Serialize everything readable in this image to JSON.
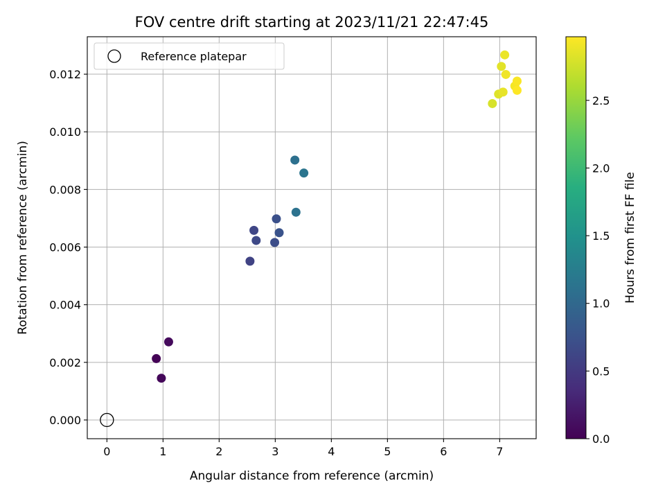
{
  "chart_data": {
    "type": "scatter",
    "title": "FOV centre drift starting at 2023/11/21 22:47:45",
    "xlabel": "Angular distance from reference (arcmin)",
    "ylabel": "Rotation from reference (arcmin)",
    "xlim": [
      -0.35,
      7.65
    ],
    "ylim": [
      -0.00065,
      0.0133
    ],
    "xticks": [
      0,
      1,
      2,
      3,
      4,
      5,
      6,
      7
    ],
    "xtick_labels": [
      "0",
      "1",
      "2",
      "3",
      "4",
      "5",
      "6",
      "7"
    ],
    "yticks": [
      0.0,
      0.002,
      0.004,
      0.006,
      0.008,
      0.01,
      0.012
    ],
    "ytick_labels": [
      "0.000",
      "0.002",
      "0.004",
      "0.006",
      "0.008",
      "0.010",
      "0.012"
    ],
    "grid": true,
    "legend": {
      "placement": "top-left",
      "entries": [
        "Reference platepar"
      ]
    },
    "reference_point": {
      "x": 0,
      "y": 0
    },
    "colorbar": {
      "label": "Hours from first FF file",
      "colormap": "viridis",
      "range": [
        0.0,
        2.97
      ],
      "ticks": [
        0.0,
        0.5,
        1.0,
        1.5,
        2.0,
        2.5
      ],
      "tick_labels": [
        "0.0",
        "0.5",
        "1.0",
        "1.5",
        "2.0",
        "2.5"
      ]
    },
    "points": [
      {
        "x": 0.88,
        "y": 0.00213,
        "hours": 0.02
      },
      {
        "x": 0.97,
        "y": 0.00145,
        "hours": 0.05
      },
      {
        "x": 1.1,
        "y": 0.00271,
        "hours": 0.08
      },
      {
        "x": 2.55,
        "y": 0.00551,
        "hours": 0.6
      },
      {
        "x": 2.62,
        "y": 0.00658,
        "hours": 0.63
      },
      {
        "x": 2.66,
        "y": 0.00623,
        "hours": 0.66
      },
      {
        "x": 2.99,
        "y": 0.00616,
        "hours": 0.7
      },
      {
        "x": 3.02,
        "y": 0.00698,
        "hours": 0.73
      },
      {
        "x": 3.07,
        "y": 0.0065,
        "hours": 0.76
      },
      {
        "x": 3.35,
        "y": 0.00902,
        "hours": 1.1
      },
      {
        "x": 3.37,
        "y": 0.00721,
        "hours": 1.13
      },
      {
        "x": 3.51,
        "y": 0.00857,
        "hours": 1.16
      },
      {
        "x": 6.87,
        "y": 0.01098,
        "hours": 2.8
      },
      {
        "x": 6.98,
        "y": 0.01131,
        "hours": 2.83
      },
      {
        "x": 7.03,
        "y": 0.01227,
        "hours": 2.85
      },
      {
        "x": 7.06,
        "y": 0.01138,
        "hours": 2.87
      },
      {
        "x": 7.09,
        "y": 0.01267,
        "hours": 2.89
      },
      {
        "x": 7.11,
        "y": 0.01199,
        "hours": 2.91
      },
      {
        "x": 7.27,
        "y": 0.01159,
        "hours": 2.93
      },
      {
        "x": 7.31,
        "y": 0.01176,
        "hours": 2.95
      },
      {
        "x": 7.31,
        "y": 0.01144,
        "hours": 2.97
      }
    ]
  }
}
